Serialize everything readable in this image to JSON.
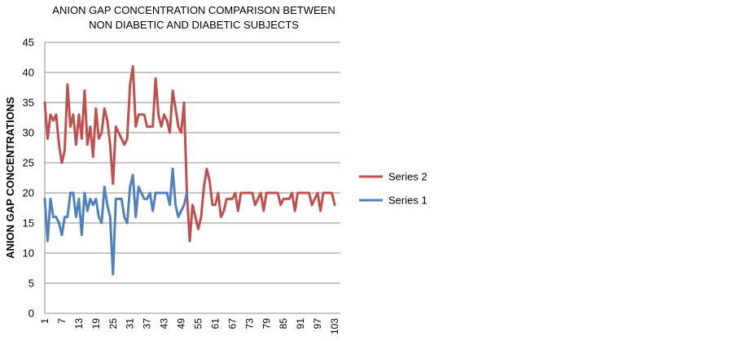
{
  "chart_data": {
    "type": "line",
    "title_lines": [
      "ANION GAP CONCENTRATION COMPARISON BETWEEN",
      "NON DIABETIC AND DIABETIC SUBJECTS"
    ],
    "xlabel": "",
    "ylabel": "ANION GAP CONCENTRATIONS",
    "ylim": [
      0,
      45
    ],
    "yticks": [
      0,
      5,
      10,
      15,
      20,
      25,
      30,
      35,
      40,
      45
    ],
    "x_count": 105,
    "xticks": [
      1,
      7,
      13,
      19,
      25,
      31,
      37,
      43,
      49,
      55,
      61,
      67,
      73,
      79,
      85,
      91,
      97,
      103
    ],
    "grid": true,
    "legend_position": "right",
    "series": [
      {
        "name": "Series 2",
        "color": "#c0504d",
        "values": [
          35,
          29,
          33,
          32,
          33,
          28,
          25,
          27,
          38,
          31,
          33,
          28,
          33,
          29,
          37,
          28,
          31,
          26,
          34,
          29,
          30,
          34,
          32,
          28,
          21.5,
          31,
          30,
          29,
          28,
          29,
          38,
          41,
          31,
          33,
          33,
          33,
          31,
          31,
          31,
          39,
          33,
          31,
          33,
          32,
          30,
          37,
          34,
          31,
          30,
          35,
          20,
          12,
          18,
          16,
          14,
          16,
          21,
          24,
          22,
          18,
          18,
          20,
          16,
          17,
          19,
          19,
          19,
          20,
          17,
          20,
          20,
          20,
          20,
          20,
          18,
          19,
          20,
          17,
          20,
          20,
          20,
          20,
          20,
          18,
          19,
          19,
          19,
          20,
          17,
          20,
          20,
          20,
          20,
          20,
          18,
          19,
          20,
          17,
          20,
          20,
          20,
          20,
          18
        ]
      },
      {
        "name": "Series 1",
        "color": "#4f81bd",
        "values": [
          19,
          12,
          19,
          16,
          16,
          15,
          13,
          16,
          16,
          20,
          20,
          16,
          19,
          13,
          20,
          17,
          19,
          18,
          19,
          16,
          15,
          21,
          18,
          16,
          6.5,
          19,
          19,
          19,
          16,
          15,
          21,
          23,
          16,
          21,
          20,
          19,
          19,
          20,
          17,
          20,
          20,
          20,
          20,
          20,
          18,
          24,
          18,
          16,
          17,
          18,
          20
        ]
      }
    ]
  }
}
